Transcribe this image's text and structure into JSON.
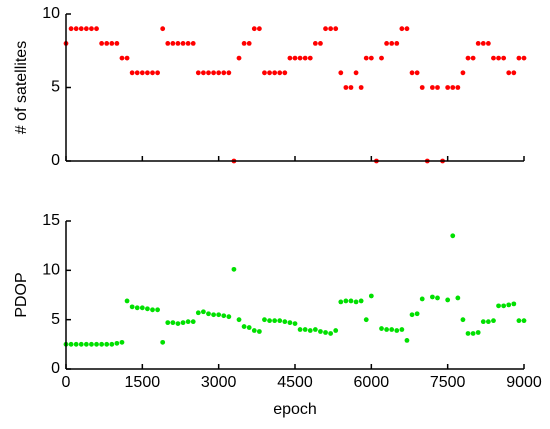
{
  "chart_data": [
    {
      "type": "scatter",
      "ylabel": "# of satellites",
      "color": "#ff0000",
      "show_xtick_labels": false,
      "x": [
        0,
        100,
        200,
        300,
        400,
        500,
        600,
        700,
        800,
        900,
        1000,
        1100,
        1200,
        1300,
        1400,
        1500,
        1600,
        1700,
        1800,
        1900,
        2000,
        2100,
        2200,
        2300,
        2400,
        2500,
        2600,
        2700,
        2800,
        2900,
        3000,
        3100,
        3200,
        3300,
        3400,
        3500,
        3600,
        3700,
        3800,
        3900,
        4000,
        4100,
        4200,
        4300,
        4400,
        4500,
        4600,
        4700,
        4800,
        4900,
        5000,
        5100,
        5200,
        5300,
        5400,
        5500,
        5600,
        5700,
        5800,
        5900,
        6000,
        6100,
        6200,
        6300,
        6400,
        6500,
        6600,
        6700,
        6800,
        6900,
        7000,
        7100,
        7200,
        7300,
        7400,
        7500,
        7600,
        7700,
        7800,
        7900,
        8000,
        8100,
        8200,
        8300,
        8400,
        8500,
        8600,
        8700,
        8800,
        8900,
        9000
      ],
      "values": [
        8,
        9,
        9,
        9,
        9,
        9,
        9,
        8,
        8,
        8,
        8,
        7,
        7,
        6,
        6,
        6,
        6,
        6,
        6,
        9,
        8,
        8,
        8,
        8,
        8,
        8,
        6,
        6,
        6,
        6,
        6,
        6,
        6,
        0,
        7,
        8,
        8,
        9,
        9,
        6,
        6,
        6,
        6,
        6,
        7,
        7,
        7,
        7,
        7,
        8,
        8,
        9,
        9,
        9,
        6,
        5,
        5,
        6,
        5,
        7,
        7,
        0,
        7,
        8,
        8,
        8,
        9,
        9,
        6,
        6,
        5,
        0,
        5,
        5,
        0,
        5,
        5,
        5,
        6,
        7,
        7,
        8,
        8,
        8,
        7,
        7,
        7,
        6,
        6,
        7,
        7
      ],
      "xlim": [
        0,
        9000
      ],
      "xticks": [
        0,
        1500,
        3000,
        4500,
        6000,
        7500,
        9000
      ],
      "ylim": [
        0,
        10
      ],
      "yticks": [
        0,
        5,
        10
      ]
    },
    {
      "type": "scatter",
      "ylabel": "PDOP",
      "xlabel": "epoch",
      "color": "#00e000",
      "show_xtick_labels": true,
      "x": [
        0,
        100,
        200,
        300,
        400,
        500,
        600,
        700,
        800,
        900,
        1000,
        1100,
        1200,
        1300,
        1400,
        1500,
        1600,
        1700,
        1800,
        1900,
        2000,
        2100,
        2200,
        2300,
        2400,
        2500,
        2600,
        2700,
        2800,
        2900,
        3000,
        3100,
        3200,
        3300,
        3400,
        3500,
        3600,
        3700,
        3800,
        3900,
        4000,
        4100,
        4200,
        4300,
        4400,
        4500,
        4600,
        4700,
        4800,
        4900,
        5000,
        5100,
        5200,
        5300,
        5400,
        5500,
        5600,
        5700,
        5800,
        5900,
        6000,
        6100,
        6200,
        6300,
        6400,
        6500,
        6600,
        6700,
        6800,
        6900,
        7000,
        7100,
        7200,
        7300,
        7400,
        7500,
        7600,
        7700,
        7800,
        7900,
        8000,
        8100,
        8200,
        8300,
        8400,
        8500,
        8600,
        8700,
        8800,
        8900,
        9000
      ],
      "values": [
        2.5,
        2.5,
        2.5,
        2.5,
        2.5,
        2.5,
        2.5,
        2.5,
        2.5,
        2.5,
        2.6,
        2.7,
        6.9,
        6.3,
        6.2,
        6.2,
        6.1,
        6.0,
        6.0,
        2.7,
        4.7,
        4.7,
        4.6,
        4.7,
        4.8,
        4.8,
        5.7,
        5.8,
        5.6,
        5.5,
        5.5,
        5.4,
        5.3,
        10.1,
        5.0,
        4.3,
        4.2,
        3.9,
        3.8,
        5.0,
        4.9,
        4.9,
        4.9,
        4.8,
        4.7,
        4.6,
        4.0,
        4.0,
        3.9,
        4.0,
        3.8,
        3.7,
        3.6,
        3.9,
        6.8,
        6.9,
        6.9,
        6.8,
        6.9,
        5.0,
        7.4,
        null,
        4.1,
        4.0,
        4.0,
        3.9,
        4.0,
        2.9,
        5.5,
        5.6,
        7.1,
        null,
        7.3,
        7.2,
        null,
        7.0,
        13.5,
        7.2,
        5.0,
        3.6,
        3.6,
        3.7,
        4.8,
        4.8,
        4.9,
        6.4,
        6.4,
        6.5,
        6.6,
        4.9,
        4.9
      ],
      "xlim": [
        0,
        9000
      ],
      "xticks": [
        0,
        1500,
        3000,
        4500,
        6000,
        7500,
        9000
      ],
      "ylim": [
        0,
        15
      ],
      "yticks": [
        0,
        5,
        10,
        15
      ]
    }
  ]
}
